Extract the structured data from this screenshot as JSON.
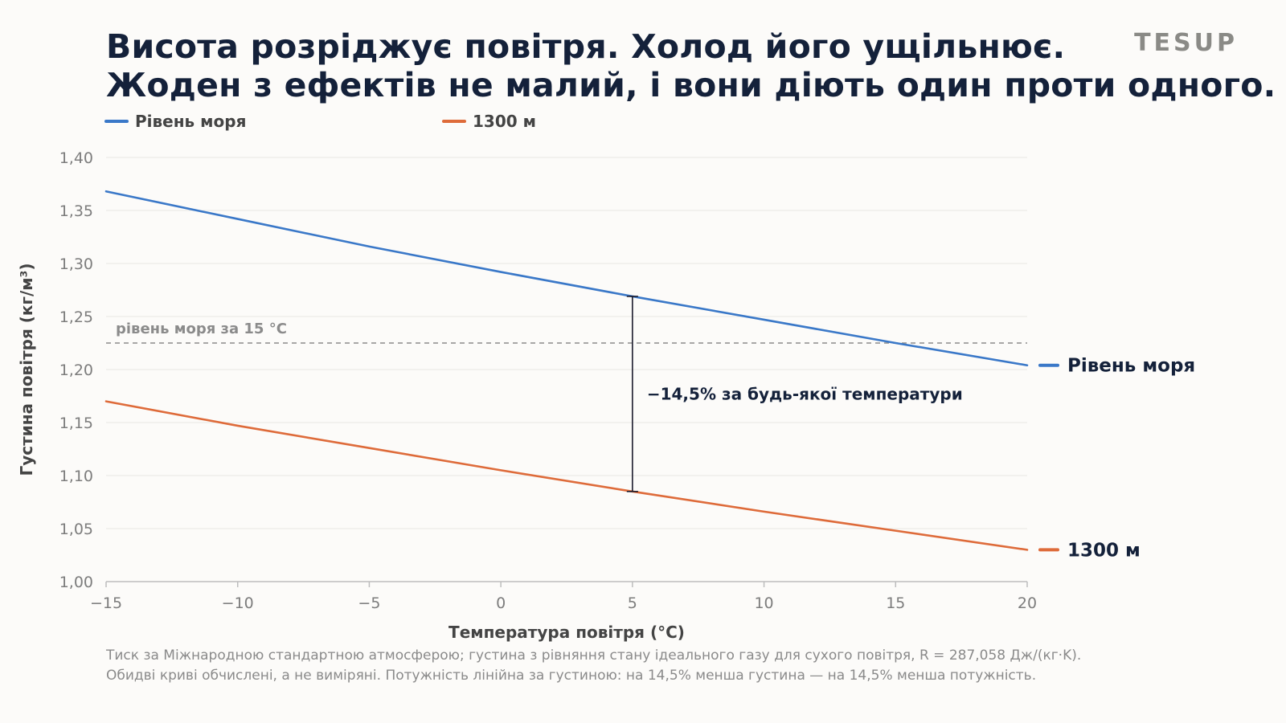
{
  "header": {
    "title_line1": "Висота розріджує повітря. Холод його ущільнює.",
    "title_line2": "Жоден з ефектів не малий, і вони діють один проти одного.",
    "brand": "TESUP"
  },
  "footnote": {
    "line1": "Тиск за Міжнародною стандартною атмосферою; густина з рівняння стану ідеального газу для сухого повітря, R = 287,058 Дж/(кг·K).",
    "line2": "Обидві криві обчислені, а не виміряні. Потужність лінійна за густиною: на 14,5% менша густина — на 14,5% менша потужність."
  },
  "chart_data": {
    "type": "line",
    "xlabel": "Температура повітря (°C)",
    "ylabel": "Густина повітря (кг/м³)",
    "xlim": [
      -15,
      20
    ],
    "ylim": [
      1.0,
      1.4
    ],
    "xticks": [
      -15,
      -10,
      -5,
      0,
      5,
      10,
      15,
      20
    ],
    "xtick_labels": [
      "−15",
      "−10",
      "−5",
      "0",
      "5",
      "10",
      "15",
      "20"
    ],
    "yticks": [
      1.0,
      1.05,
      1.1,
      1.15,
      1.2,
      1.25,
      1.3,
      1.35,
      1.4
    ],
    "ytick_labels": [
      "1,00",
      "1,05",
      "1,10",
      "1,15",
      "1,20",
      "1,25",
      "1,30",
      "1,35",
      "1,40"
    ],
    "grid": "horizontal",
    "legend_position": "top-left",
    "series": [
      {
        "name": "Рівень моря",
        "end_label": "Рівень моря",
        "color": "#3a78c8",
        "x": [
          -15,
          -10,
          -5,
          0,
          5,
          10,
          15,
          20
        ],
        "y": [
          1.368,
          1.342,
          1.316,
          1.292,
          1.269,
          1.247,
          1.225,
          1.204
        ]
      },
      {
        "name": "1300 м",
        "end_label": "1300 м",
        "color": "#de6b3a",
        "x": [
          -15,
          -10,
          -5,
          0,
          5,
          10,
          15,
          20
        ],
        "y": [
          1.17,
          1.147,
          1.126,
          1.105,
          1.085,
          1.066,
          1.048,
          1.03
        ]
      }
    ],
    "reference_line": {
      "y": 1.225,
      "label": "рівень моря за 15 °C",
      "color": "#8b8b8b"
    },
    "annotation": {
      "x": 5,
      "y_top": 1.269,
      "y_bottom": 1.085,
      "label": "−14,5% за будь-якої температури"
    }
  }
}
